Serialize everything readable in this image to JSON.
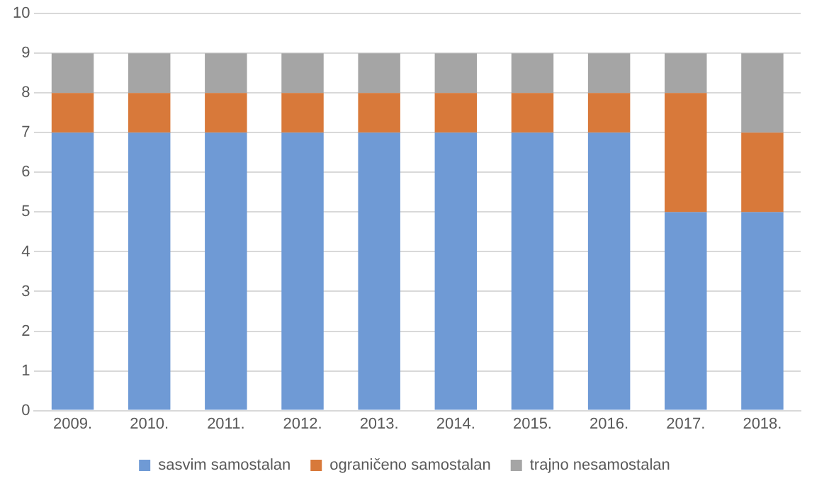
{
  "chart_data": {
    "type": "bar",
    "stacked": true,
    "categories": [
      "2009.",
      "2010.",
      "2011.",
      "2012.",
      "2013.",
      "2014.",
      "2015.",
      "2016.",
      "2017.",
      "2018."
    ],
    "series": [
      {
        "name": "sasvim samostalan",
        "color": "#6f9ad5",
        "values": [
          7,
          7,
          7,
          7,
          7,
          7,
          7,
          7,
          5,
          5
        ]
      },
      {
        "name": "ograničeno samostalan",
        "color": "#d8793a",
        "values": [
          1,
          1,
          1,
          1,
          1,
          1,
          1,
          1,
          3,
          2
        ]
      },
      {
        "name": "trajno nesamostalan",
        "color": "#a5a5a5",
        "values": [
          1,
          1,
          1,
          1,
          1,
          1,
          1,
          1,
          1,
          2
        ]
      }
    ],
    "ylim": [
      0,
      10
    ],
    "yticks": [
      0,
      1,
      2,
      3,
      4,
      5,
      6,
      7,
      8,
      9,
      10
    ],
    "grid": "y",
    "legend": "bottom"
  }
}
